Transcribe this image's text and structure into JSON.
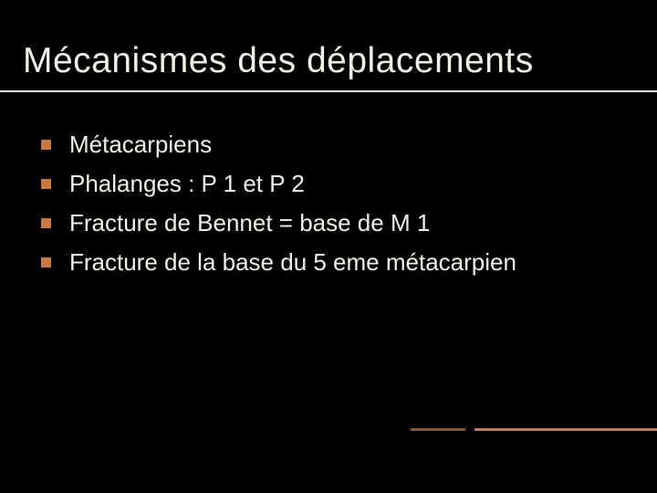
{
  "slide": {
    "title": "Mécanismes des déplacements",
    "title_color": "#f0f0e8",
    "title_fontsize": 39,
    "background_color": "#000000",
    "underline_color": "#f0f0e8",
    "bullets": [
      {
        "text": "Métacarpiens"
      },
      {
        "text": "Phalanges : P 1 et  P 2"
      },
      {
        "text": "Fracture de Bennet = base de M 1"
      },
      {
        "text": "Fracture de la base du 5 eme métacarpien"
      }
    ],
    "bullet_marker_color": "#c97840",
    "bullet_marker_size": 11,
    "bullet_text_color": "#f0f0e8",
    "bullet_fontsize": 26,
    "accent_primary_color": "#c97840",
    "accent_secondary_color": "#8a5530"
  }
}
